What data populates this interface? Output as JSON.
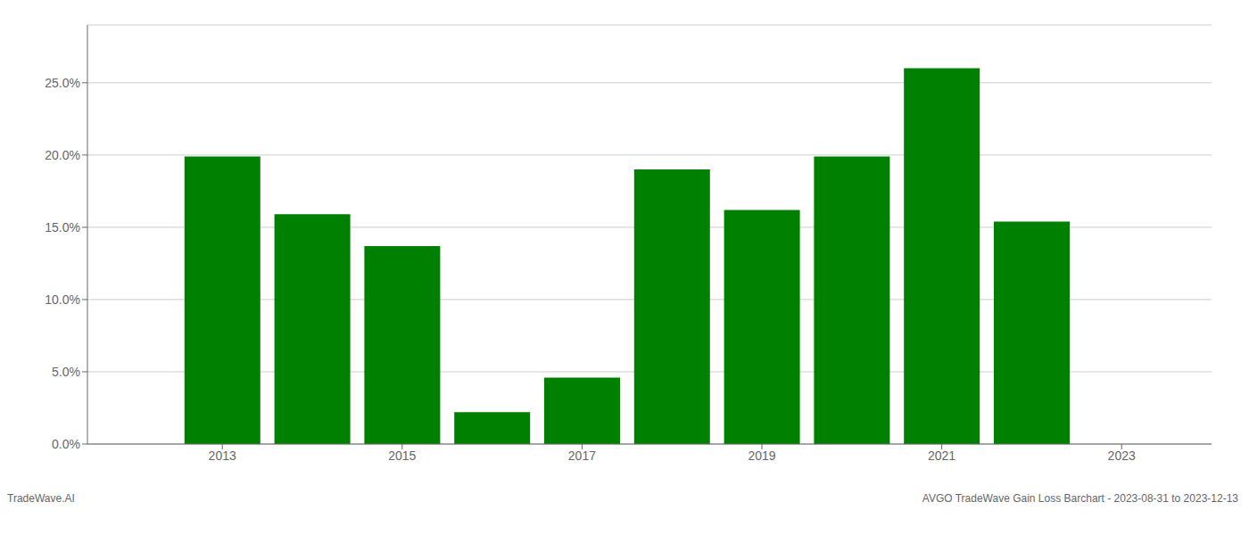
{
  "chart_data": {
    "type": "bar",
    "x": [
      2013,
      2014,
      2015,
      2016,
      2017,
      2018,
      2019,
      2020,
      2021,
      2022,
      2023
    ],
    "values": [
      0.199,
      0.159,
      0.137,
      0.022,
      0.046,
      0.19,
      0.162,
      0.199,
      0.26,
      0.154,
      0.0
    ],
    "color": "#008000",
    "xlim": [
      2011.5,
      2024.0
    ],
    "xticks": [
      2013,
      2015,
      2017,
      2019,
      2021,
      2023
    ],
    "ylim": [
      0,
      0.29
    ],
    "yticks": [
      {
        "value": 0.0,
        "label": "0.0%"
      },
      {
        "value": 0.05,
        "label": "5.0%"
      },
      {
        "value": 0.1,
        "label": "10.0%"
      },
      {
        "value": 0.15,
        "label": "15.0%"
      },
      {
        "value": 0.2,
        "label": "20.0%"
      },
      {
        "value": 0.25,
        "label": "25.0%"
      }
    ],
    "grid": true,
    "annotations": [
      "TradeWave.AI",
      "AVGO TradeWave Gain Loss Barchart - 2023-08-31 to 2023-12-13"
    ]
  }
}
